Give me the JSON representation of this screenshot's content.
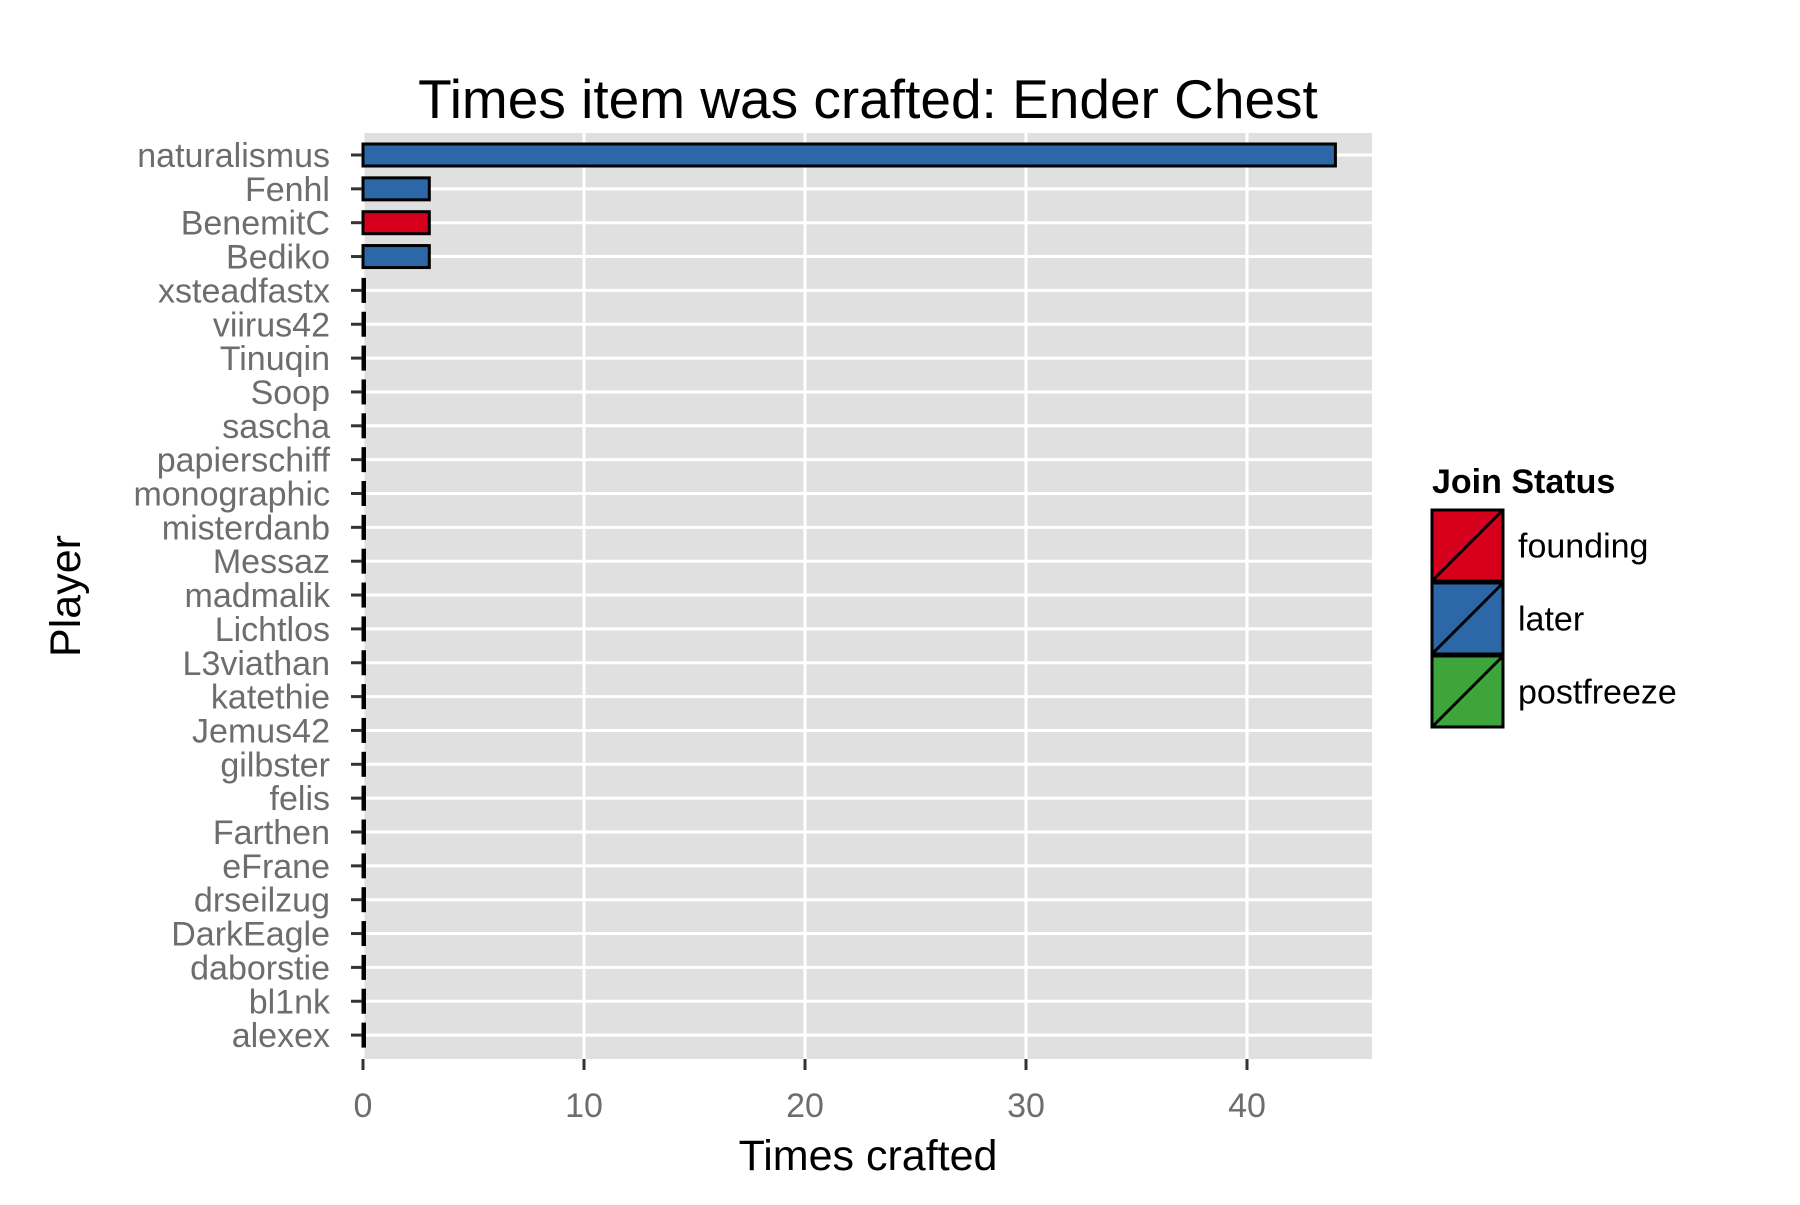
{
  "chart_data": {
    "type": "bar",
    "orientation": "horizontal",
    "title": "Times item was crafted: Ender Chest",
    "xlabel": "Times crafted",
    "ylabel": "Player",
    "xlim": [
      0,
      45.6
    ],
    "x_ticks": [
      "0",
      "10",
      "20",
      "30",
      "40"
    ],
    "grid": true,
    "categories": [
      "naturalismus",
      "Fenhl",
      "BenemitC",
      "Bediko",
      "xsteadfastx",
      "viirus42",
      "Tinuqin",
      "Soop",
      "sascha",
      "papierschiff",
      "monographic",
      "misterdanb",
      "Messaz",
      "madmalik",
      "Lichtlos",
      "L3viathan",
      "katethie",
      "Jemus42",
      "gilbster",
      "felis",
      "Farthen",
      "eFrane",
      "drseilzug",
      "DarkEagle",
      "daborstie",
      "bl1nk",
      "alexex"
    ],
    "values": [
      44,
      3,
      3,
      3,
      0,
      0,
      0,
      0,
      0,
      0,
      0,
      0,
      0,
      0,
      0,
      0,
      0,
      0,
      0,
      0,
      0,
      0,
      0,
      0,
      0,
      0,
      0
    ],
    "join_status": [
      "later",
      "later",
      "founding",
      "later",
      "later",
      "later",
      "later",
      "later",
      "later",
      "later",
      "later",
      "later",
      "later",
      "later",
      "later",
      "later",
      "later",
      "later",
      "later",
      "later",
      "later",
      "later",
      "later",
      "later",
      "later",
      "later",
      "later"
    ],
    "legend": {
      "title": "Join Status",
      "position": "right",
      "entries": [
        {
          "name": "founding",
          "color": "#d7001c"
        },
        {
          "name": "later",
          "color": "#2c67a7"
        },
        {
          "name": "postfreeze",
          "color": "#3ea53a"
        }
      ]
    },
    "colors": {
      "panel_background": "#e0e0e0",
      "gridline": "#ffffff",
      "bar_outline": "#000000"
    }
  }
}
